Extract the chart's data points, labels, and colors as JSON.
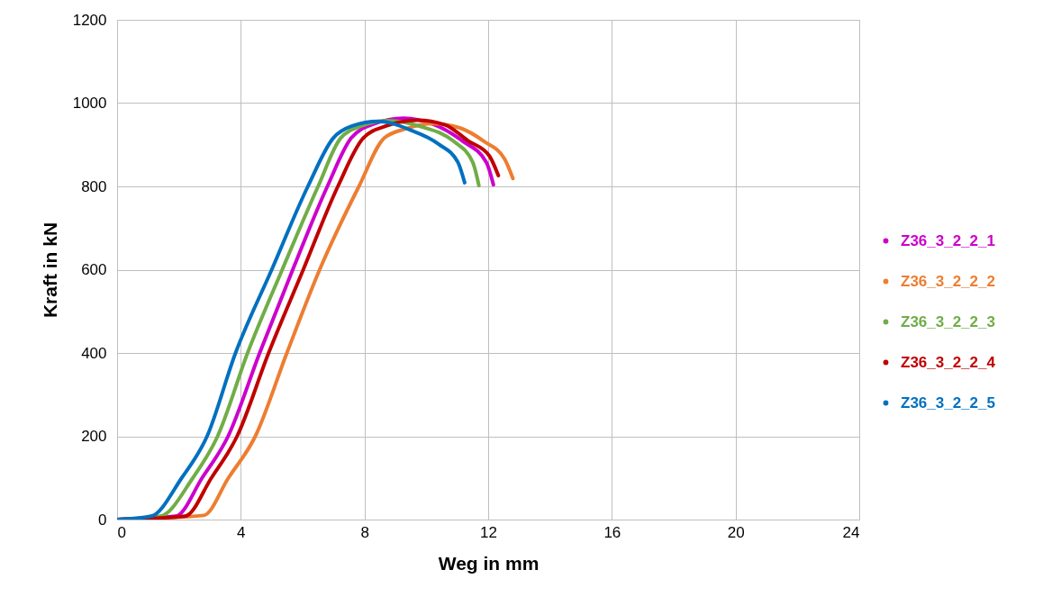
{
  "chart_data": {
    "type": "line",
    "xlabel": "Weg in mm",
    "ylabel": "Kraft in kN",
    "xlim": [
      0,
      24
    ],
    "xticks": [
      0,
      4,
      8,
      12,
      16,
      20,
      24
    ],
    "ylim": [
      0,
      1200
    ],
    "yticks": [
      0,
      200,
      400,
      600,
      800,
      1000,
      1200
    ],
    "grid": true,
    "legend": "right",
    "marker": "none",
    "line_style": "solid",
    "series": [
      {
        "name": "Z36_3_2_2_1",
        "color": "#cc00cc",
        "x": [
          0,
          1.9,
          2.75,
          3.59,
          4.61,
          5.68,
          6.8,
          7.57,
          8.3,
          9.27,
          10.2,
          11.17,
          11.94,
          12.17
        ],
        "values": [
          0,
          8,
          100,
          200,
          400,
          600,
          800,
          916,
          950,
          964,
          950,
          909,
          858,
          804
        ]
      },
      {
        "name": "Z36_3_2_2_2",
        "color": "#ed7d31",
        "x": [
          0,
          2.8,
          3.6,
          4.47,
          5.49,
          6.55,
          7.82,
          8.64,
          9.32,
          10.2,
          11.1,
          11.85,
          12.53,
          12.8
        ],
        "values": [
          0,
          10,
          100,
          200,
          400,
          600,
          800,
          916,
          938,
          951,
          940,
          909,
          866,
          819
        ]
      },
      {
        "name": "Z36_3_2_2_3",
        "color": "#70ad47",
        "x": [
          0,
          1.4,
          2.45,
          3.25,
          4.22,
          5.34,
          6.5,
          7.23,
          7.9,
          8.74,
          9.9,
          10.87,
          11.5,
          11.7
        ],
        "values": [
          0,
          8,
          100,
          200,
          400,
          600,
          800,
          916,
          945,
          958,
          942,
          909,
          858,
          802
        ]
      },
      {
        "name": "Z36_3_2_2_4",
        "color": "#c00000",
        "x": [
          0,
          2.2,
          3.05,
          3.88,
          4.9,
          6.02,
          7.14,
          7.96,
          8.7,
          9.71,
          10.6,
          11.36,
          12.04,
          12.33
        ],
        "values": [
          0,
          8,
          100,
          200,
          400,
          600,
          800,
          916,
          945,
          959,
          948,
          909,
          873,
          826
        ]
      },
      {
        "name": "Z36_3_2_2_5",
        "color": "#0070c0",
        "x": [
          0,
          1.1,
          2.09,
          2.91,
          3.83,
          5.0,
          6.17,
          6.99,
          7.6,
          8.45,
          9.5,
          10.39,
          11.02,
          11.24
        ],
        "values": [
          0,
          8,
          100,
          200,
          400,
          600,
          800,
          916,
          945,
          956,
          935,
          902,
          858,
          809
        ]
      }
    ]
  }
}
